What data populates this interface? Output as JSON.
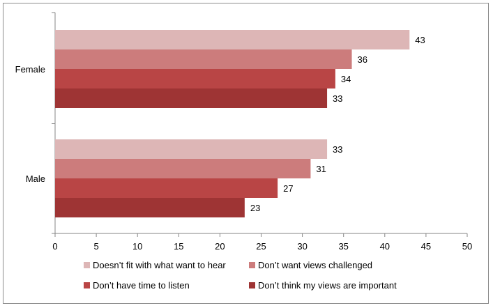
{
  "chart_data": {
    "type": "bar",
    "orientation": "horizontal",
    "categories": [
      "Female",
      "Male"
    ],
    "series": [
      {
        "name": "Doesn’t fit with what want to hear",
        "values": [
          43,
          33
        ],
        "color": "#ddb6b6"
      },
      {
        "name": "Don’t want views challenged",
        "values": [
          36,
          31
        ],
        "color": "#cc7c7c"
      },
      {
        "name": "Don’t have time to listen",
        "values": [
          34,
          27
        ],
        "color": "#b94545"
      },
      {
        "name": "Don’t think my views are important",
        "values": [
          33,
          23
        ],
        "color": "#9e3434"
      }
    ],
    "xlim": [
      0,
      50
    ],
    "xticks": [
      0,
      5,
      10,
      15,
      20,
      25,
      30,
      35,
      40,
      45,
      50
    ],
    "grid": false,
    "legend_position": "bottom",
    "data_labels": true
  }
}
